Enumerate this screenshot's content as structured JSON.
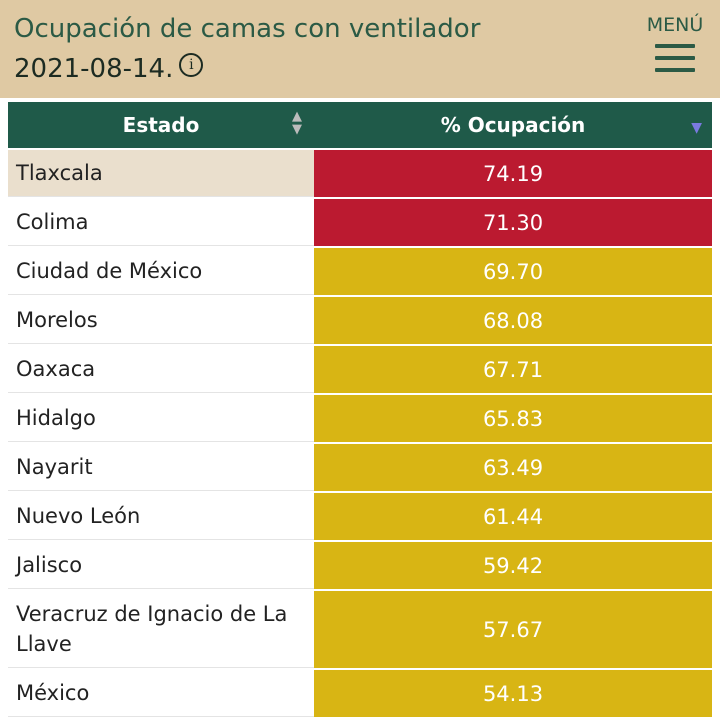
{
  "header": {
    "title": "Ocupación de camas con ventilador",
    "date": "2021-08-14.",
    "info_icon": "info-icon",
    "menu_label": "MENÚ",
    "menu_icon": "hamburger-icon"
  },
  "colors": {
    "header_bg": "#dfc9a3",
    "table_header": "#1f5a49",
    "high": "#bb1a30",
    "medium": "#d8b514"
  },
  "table": {
    "columns": [
      "Estado",
      "% Ocupación"
    ],
    "sort": {
      "column": "% Ocupación",
      "direction": "descending"
    },
    "rows": [
      {
        "estado": "Tlaxcala",
        "ocupacion": "74.19",
        "level": "high"
      },
      {
        "estado": "Colima",
        "ocupacion": "71.30",
        "level": "high"
      },
      {
        "estado": "Ciudad de México",
        "ocupacion": "69.70",
        "level": "medium"
      },
      {
        "estado": "Morelos",
        "ocupacion": "68.08",
        "level": "medium"
      },
      {
        "estado": "Oaxaca",
        "ocupacion": "67.71",
        "level": "medium"
      },
      {
        "estado": "Hidalgo",
        "ocupacion": "65.83",
        "level": "medium"
      },
      {
        "estado": "Nayarit",
        "ocupacion": "63.49",
        "level": "medium"
      },
      {
        "estado": "Nuevo León",
        "ocupacion": "61.44",
        "level": "medium"
      },
      {
        "estado": "Jalisco",
        "ocupacion": "59.42",
        "level": "medium"
      },
      {
        "estado": "Veracruz de Ignacio de La Llave",
        "ocupacion": "57.67",
        "level": "medium"
      },
      {
        "estado": "México",
        "ocupacion": "54.13",
        "level": "medium"
      }
    ]
  }
}
